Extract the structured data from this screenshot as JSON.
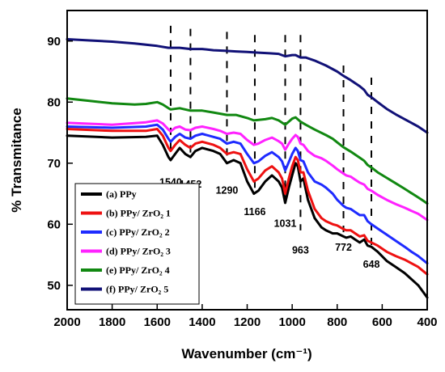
{
  "chart_data": {
    "type": "line",
    "xlabel": "Wavenumber (cm⁻¹)",
    "ylabel": "% Transmitance",
    "xlim": [
      2000,
      400
    ],
    "ylim": [
      46,
      95
    ],
    "x_reversed": true,
    "x_ticks": [
      2000,
      1800,
      1600,
      1400,
      1200,
      1000,
      800,
      600,
      400
    ],
    "y_ticks": [
      50,
      60,
      70,
      80,
      90
    ],
    "grid": false,
    "legend_position": "bottom-left",
    "series": [
      {
        "name": "(a) PPy",
        "color": "#000000",
        "points": [
          [
            2000,
            74.5
          ],
          [
            1800,
            74.2
          ],
          [
            1650,
            74.3
          ],
          [
            1600,
            74.5
          ],
          [
            1575,
            73
          ],
          [
            1550,
            71
          ],
          [
            1540,
            70.5
          ],
          [
            1520,
            71.5
          ],
          [
            1500,
            72.5
          ],
          [
            1475,
            71.5
          ],
          [
            1452,
            71
          ],
          [
            1430,
            72
          ],
          [
            1400,
            72.5
          ],
          [
            1350,
            72
          ],
          [
            1320,
            71.5
          ],
          [
            1290,
            70
          ],
          [
            1260,
            70.5
          ],
          [
            1230,
            70
          ],
          [
            1200,
            67
          ],
          [
            1170,
            65
          ],
          [
            1150,
            65.5
          ],
          [
            1120,
            67
          ],
          [
            1090,
            68
          ],
          [
            1060,
            67
          ],
          [
            1045,
            66
          ],
          [
            1031,
            63.5
          ],
          [
            1015,
            66
          ],
          [
            1000,
            68
          ],
          [
            985,
            70
          ],
          [
            975,
            69.5
          ],
          [
            963,
            67
          ],
          [
            950,
            67.5
          ],
          [
            930,
            64
          ],
          [
            900,
            61
          ],
          [
            870,
            59.5
          ],
          [
            850,
            59
          ],
          [
            820,
            58.5
          ],
          [
            800,
            58.5
          ],
          [
            772,
            58
          ],
          [
            760,
            57.8
          ],
          [
            740,
            58
          ],
          [
            720,
            57.5
          ],
          [
            700,
            57
          ],
          [
            680,
            57.5
          ],
          [
            665,
            56.5
          ],
          [
            648,
            56.3
          ],
          [
            620,
            55.5
          ],
          [
            580,
            54
          ],
          [
            540,
            53
          ],
          [
            500,
            52
          ],
          [
            470,
            51
          ],
          [
            440,
            50
          ],
          [
            420,
            49
          ],
          [
            400,
            48
          ]
        ]
      },
      {
        "name": "(b) PPy/ ZrO₂ 1",
        "color": "#ee1111",
        "points": [
          [
            2000,
            75.6
          ],
          [
            1800,
            75.3
          ],
          [
            1650,
            75.3
          ],
          [
            1600,
            75.6
          ],
          [
            1575,
            74.5
          ],
          [
            1550,
            72.5
          ],
          [
            1540,
            72
          ],
          [
            1520,
            73
          ],
          [
            1500,
            73.8
          ],
          [
            1475,
            73
          ],
          [
            1452,
            72.5
          ],
          [
            1430,
            73.2
          ],
          [
            1400,
            73.5
          ],
          [
            1350,
            73
          ],
          [
            1320,
            72.5
          ],
          [
            1290,
            71.5
          ],
          [
            1260,
            71.8
          ],
          [
            1230,
            71.5
          ],
          [
            1200,
            69
          ],
          [
            1170,
            67
          ],
          [
            1150,
            67.5
          ],
          [
            1120,
            68.8
          ],
          [
            1090,
            69.5
          ],
          [
            1060,
            68.5
          ],
          [
            1045,
            67.5
          ],
          [
            1031,
            65
          ],
          [
            1015,
            67.5
          ],
          [
            1000,
            69.5
          ],
          [
            985,
            71
          ],
          [
            975,
            70.5
          ],
          [
            963,
            68.5
          ],
          [
            950,
            68.5
          ],
          [
            930,
            65.5
          ],
          [
            900,
            62.5
          ],
          [
            870,
            61
          ],
          [
            850,
            60.5
          ],
          [
            820,
            60
          ],
          [
            800,
            59.8
          ],
          [
            772,
            59.2
          ],
          [
            760,
            59
          ],
          [
            740,
            59
          ],
          [
            720,
            58.5
          ],
          [
            700,
            58
          ],
          [
            680,
            58.2
          ],
          [
            665,
            57.3
          ],
          [
            648,
            57
          ],
          [
            620,
            56.5
          ],
          [
            580,
            55.5
          ],
          [
            540,
            54.8
          ],
          [
            500,
            54.2
          ],
          [
            470,
            53.6
          ],
          [
            440,
            53
          ],
          [
            420,
            52.4
          ],
          [
            400,
            51.8
          ]
        ]
      },
      {
        "name": "(c) PPy/ ZrO₂ 2",
        "color": "#1e2bff",
        "points": [
          [
            2000,
            76
          ],
          [
            1800,
            75.8
          ],
          [
            1650,
            76
          ],
          [
            1600,
            76.3
          ],
          [
            1575,
            75.5
          ],
          [
            1550,
            74
          ],
          [
            1540,
            73.5
          ],
          [
            1520,
            74.3
          ],
          [
            1500,
            74.8
          ],
          [
            1475,
            74.2
          ],
          [
            1452,
            74
          ],
          [
            1430,
            74.5
          ],
          [
            1400,
            74.8
          ],
          [
            1350,
            74.3
          ],
          [
            1320,
            74
          ],
          [
            1290,
            73.2
          ],
          [
            1260,
            73.5
          ],
          [
            1230,
            73.2
          ],
          [
            1200,
            71.5
          ],
          [
            1170,
            70
          ],
          [
            1150,
            70.3
          ],
          [
            1120,
            71.2
          ],
          [
            1090,
            71.8
          ],
          [
            1060,
            71
          ],
          [
            1045,
            70.3
          ],
          [
            1031,
            68.8
          ],
          [
            1015,
            70.2
          ],
          [
            1000,
            71.5
          ],
          [
            985,
            72.5
          ],
          [
            975,
            72
          ],
          [
            963,
            70.5
          ],
          [
            950,
            70.3
          ],
          [
            930,
            68.5
          ],
          [
            900,
            67
          ],
          [
            870,
            66.5
          ],
          [
            850,
            66
          ],
          [
            820,
            65
          ],
          [
            800,
            64
          ],
          [
            772,
            63
          ],
          [
            760,
            62.7
          ],
          [
            740,
            62.5
          ],
          [
            720,
            62
          ],
          [
            700,
            61.5
          ],
          [
            680,
            61.5
          ],
          [
            665,
            60.5
          ],
          [
            648,
            60
          ],
          [
            620,
            59.3
          ],
          [
            580,
            58.3
          ],
          [
            540,
            57.3
          ],
          [
            500,
            56.3
          ],
          [
            470,
            55.5
          ],
          [
            440,
            54.8
          ],
          [
            420,
            54.2
          ],
          [
            400,
            53.6
          ]
        ]
      },
      {
        "name": "(d) PPy/ ZrO₂ 3",
        "color": "#ff22ff",
        "points": [
          [
            2000,
            76.6
          ],
          [
            1800,
            76.3
          ],
          [
            1650,
            76.7
          ],
          [
            1600,
            77
          ],
          [
            1575,
            76.5
          ],
          [
            1550,
            75.5
          ],
          [
            1540,
            75.2
          ],
          [
            1520,
            75.8
          ],
          [
            1500,
            76
          ],
          [
            1475,
            75.5
          ],
          [
            1452,
            75.4
          ],
          [
            1430,
            75.8
          ],
          [
            1400,
            76
          ],
          [
            1350,
            75.6
          ],
          [
            1320,
            75.3
          ],
          [
            1290,
            74.8
          ],
          [
            1260,
            75
          ],
          [
            1230,
            74.8
          ],
          [
            1200,
            73.8
          ],
          [
            1170,
            73
          ],
          [
            1150,
            73.2
          ],
          [
            1120,
            73.8
          ],
          [
            1090,
            74.2
          ],
          [
            1060,
            73.6
          ],
          [
            1045,
            73.2
          ],
          [
            1031,
            72.2
          ],
          [
            1015,
            73.2
          ],
          [
            1000,
            74
          ],
          [
            985,
            74.6
          ],
          [
            975,
            74.3
          ],
          [
            963,
            73.2
          ],
          [
            950,
            73
          ],
          [
            930,
            72
          ],
          [
            900,
            71.2
          ],
          [
            870,
            70.8
          ],
          [
            850,
            70.4
          ],
          [
            820,
            69.6
          ],
          [
            800,
            69
          ],
          [
            772,
            68.3
          ],
          [
            760,
            68
          ],
          [
            740,
            67.8
          ],
          [
            720,
            67.3
          ],
          [
            700,
            66.8
          ],
          [
            680,
            66.5
          ],
          [
            665,
            65.8
          ],
          [
            648,
            65.5
          ],
          [
            620,
            64.8
          ],
          [
            580,
            64
          ],
          [
            540,
            63.3
          ],
          [
            500,
            62.7
          ],
          [
            470,
            62.2
          ],
          [
            440,
            61.7
          ],
          [
            420,
            61.2
          ],
          [
            400,
            60.7
          ]
        ]
      },
      {
        "name": "(e) PPy/ ZrO₂ 4",
        "color": "#118811",
        "points": [
          [
            2000,
            80.6
          ],
          [
            1900,
            80.2
          ],
          [
            1800,
            79.8
          ],
          [
            1700,
            79.6
          ],
          [
            1650,
            79.7
          ],
          [
            1600,
            80
          ],
          [
            1575,
            79.6
          ],
          [
            1550,
            79
          ],
          [
            1540,
            78.8
          ],
          [
            1500,
            79
          ],
          [
            1452,
            78.6
          ],
          [
            1400,
            78.6
          ],
          [
            1350,
            78.3
          ],
          [
            1290,
            77.9
          ],
          [
            1250,
            77.9
          ],
          [
            1200,
            77.4
          ],
          [
            1170,
            77
          ],
          [
            1120,
            77.2
          ],
          [
            1090,
            77.4
          ],
          [
            1060,
            77
          ],
          [
            1031,
            76.3
          ],
          [
            1015,
            76.8
          ],
          [
            1000,
            77.3
          ],
          [
            985,
            77.5
          ],
          [
            963,
            76.8
          ],
          [
            940,
            76.3
          ],
          [
            900,
            75.5
          ],
          [
            850,
            74.6
          ],
          [
            820,
            74
          ],
          [
            800,
            73.4
          ],
          [
            772,
            72.6
          ],
          [
            740,
            71.9
          ],
          [
            700,
            70.9
          ],
          [
            680,
            70.4
          ],
          [
            665,
            69.7
          ],
          [
            648,
            69.3
          ],
          [
            620,
            68.5
          ],
          [
            580,
            67.6
          ],
          [
            540,
            66.7
          ],
          [
            500,
            65.8
          ],
          [
            470,
            65.1
          ],
          [
            440,
            64.4
          ],
          [
            420,
            63.9
          ],
          [
            400,
            63.4
          ]
        ]
      },
      {
        "name": "(f) PPy/ ZrO₂ 5",
        "color": "#111177",
        "points": [
          [
            2000,
            90.3
          ],
          [
            1900,
            90.1
          ],
          [
            1800,
            89.9
          ],
          [
            1700,
            89.6
          ],
          [
            1600,
            89.2
          ],
          [
            1550,
            88.9
          ],
          [
            1500,
            88.9
          ],
          [
            1452,
            88.7
          ],
          [
            1400,
            88.7
          ],
          [
            1350,
            88.5
          ],
          [
            1300,
            88.4
          ],
          [
            1250,
            88.3
          ],
          [
            1200,
            88.2
          ],
          [
            1150,
            88.1
          ],
          [
            1100,
            88
          ],
          [
            1060,
            87.9
          ],
          [
            1031,
            87.5
          ],
          [
            1000,
            87.7
          ],
          [
            985,
            87.7
          ],
          [
            963,
            87.3
          ],
          [
            940,
            87.3
          ],
          [
            900,
            86.8
          ],
          [
            850,
            86
          ],
          [
            800,
            85
          ],
          [
            772,
            84.3
          ],
          [
            740,
            83.6
          ],
          [
            700,
            82.6
          ],
          [
            680,
            82
          ],
          [
            665,
            81.2
          ],
          [
            648,
            80.8
          ],
          [
            620,
            80
          ],
          [
            580,
            78.9
          ],
          [
            540,
            78
          ],
          [
            500,
            77.2
          ],
          [
            470,
            76.6
          ],
          [
            440,
            76
          ],
          [
            420,
            75.5
          ],
          [
            400,
            75
          ]
        ]
      }
    ],
    "peak_markers": [
      {
        "label": "1540",
        "x": 1540,
        "y_top": 92.5,
        "y_bottom": 71.5,
        "label_y": 66.3
      },
      {
        "label": "1452",
        "x": 1452,
        "y_top": 92,
        "y_bottom": 71.2,
        "label_y": 66
      },
      {
        "label": "1290",
        "x": 1290,
        "y_top": 91.5,
        "y_bottom": 71.2,
        "label_y": 65
      },
      {
        "label": "1166",
        "x": 1166,
        "y_top": 91,
        "y_bottom": 65.5,
        "label_y": 61.5
      },
      {
        "label": "1031",
        "x": 1031,
        "y_top": 91,
        "y_bottom": 63.5,
        "label_y": 59.6
      },
      {
        "label": "963",
        "x": 963,
        "y_top": 91,
        "y_bottom": 59,
        "label_y": 55.2
      },
      {
        "label": "772",
        "x": 772,
        "y_top": 86,
        "y_bottom": 58.7,
        "label_y": 55.7
      },
      {
        "label": "648",
        "x": 648,
        "y_top": 84,
        "y_bottom": 56.5,
        "label_y": 52.9
      }
    ]
  }
}
